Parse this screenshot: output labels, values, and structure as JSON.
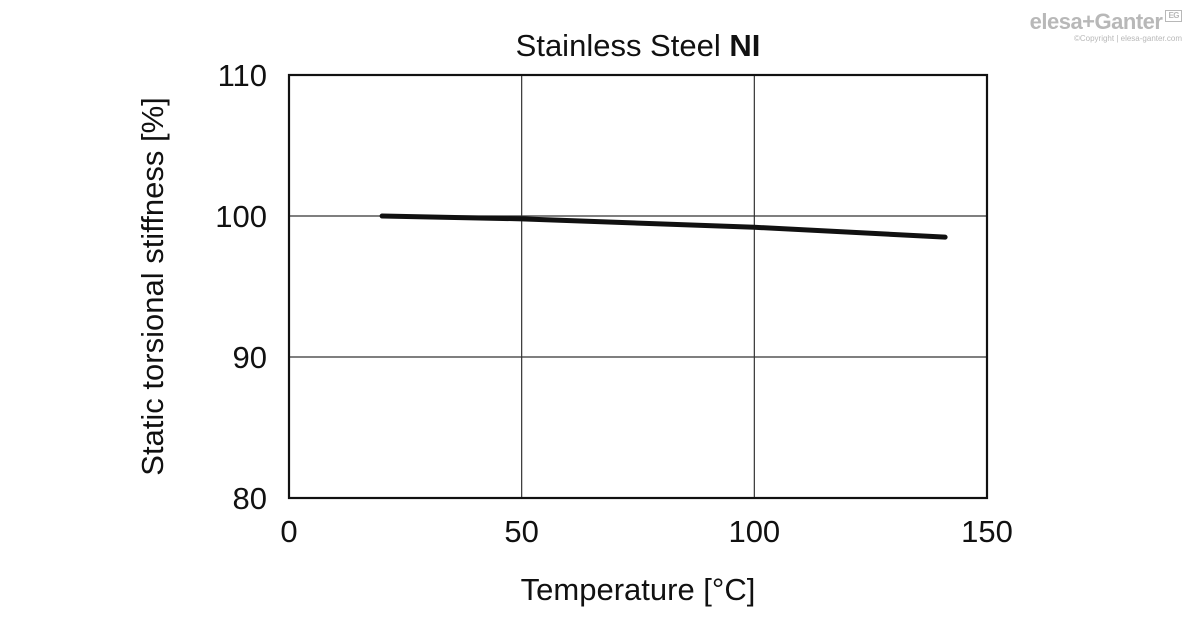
{
  "watermark": {
    "brand": "elesa+Ganter",
    "copyright": "©Copyright | elesa-ganter.com",
    "badge": "EG"
  },
  "chart_data": {
    "type": "line",
    "title_regular": "Stainless Steel ",
    "title_bold": "NI",
    "xlabel": "Temperature [°C]",
    "ylabel": "Static torsional stiffness [%]",
    "xlim": [
      0,
      150
    ],
    "ylim": [
      80,
      110
    ],
    "xticks": [
      0,
      50,
      100,
      150
    ],
    "yticks": [
      80,
      90,
      100,
      110
    ],
    "grid": true,
    "line_color": "#111111",
    "series": [
      {
        "x": [
          20,
          50,
          100,
          141
        ],
        "values": [
          100.0,
          99.8,
          99.2,
          98.5
        ]
      }
    ]
  }
}
